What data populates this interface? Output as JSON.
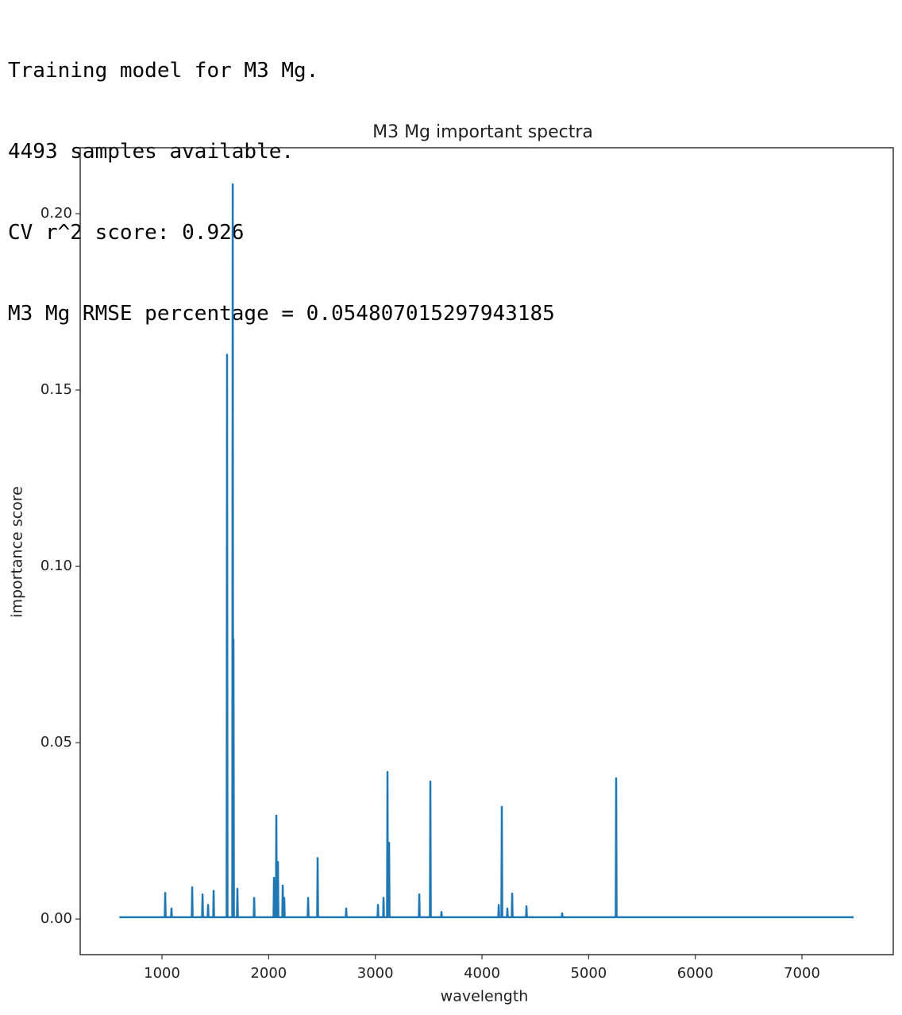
{
  "output_lines": [
    "Training model for M3 Mg.",
    "4493 samples available.",
    "CV r^2 score: 0.926",
    "M3 Mg RMSE percentage = 0.054807015297943185"
  ],
  "chart_data": {
    "type": "line",
    "title": "M3 Mg important spectra",
    "x_label": "wavelength",
    "y_label": "importance score",
    "x": [
      600,
      1026,
      1030,
      1034,
      1085,
      1089,
      1093,
      1279,
      1283,
      1287,
      1376,
      1380,
      1384,
      1428,
      1432,
      1436,
      1480,
      1484,
      1488,
      1606,
      1610,
      1614,
      1659,
      1663,
      1667,
      1670,
      1674,
      1703,
      1707,
      1711,
      1860,
      1864,
      1868,
      2046,
      2050,
      2054,
      2068,
      2072,
      2076,
      2083,
      2087,
      2091,
      2128,
      2132,
      2136,
      2142,
      2146,
      2150,
      2366,
      2370,
      2374,
      2455,
      2459,
      2463,
      2723,
      2727,
      2731,
      3021,
      3025,
      3029,
      3073,
      3077,
      3081,
      3110,
      3114,
      3118,
      3125,
      3129,
      3133,
      3408,
      3412,
      3416,
      3512,
      3516,
      3520,
      3616,
      3620,
      3624,
      4153,
      4157,
      4161,
      4182,
      4186,
      4190,
      4234,
      4238,
      4242,
      4279,
      4283,
      4287,
      4413,
      4417,
      4421,
      4748,
      4752,
      4756,
      5254,
      5258,
      5262,
      7484
    ],
    "series": [
      {
        "color": "#1f77b4",
        "values": [
          0.0005,
          0.0005,
          0.0074,
          0.0005,
          0.0005,
          0.003,
          0.0005,
          0.0005,
          0.009,
          0.0005,
          0.0005,
          0.007,
          0.0005,
          0.0005,
          0.004,
          0.0005,
          0.0005,
          0.008,
          0.0005,
          0.0005,
          0.16,
          0.0005,
          0.0005,
          0.2083,
          0.0005,
          0.0793,
          0.0005,
          0.0005,
          0.0086,
          0.0005,
          0.0005,
          0.006,
          0.0005,
          0.0005,
          0.0117,
          0.0005,
          0.0005,
          0.0293,
          0.0005,
          0.0005,
          0.0162,
          0.0005,
          0.0005,
          0.0095,
          0.0005,
          0.0005,
          0.006,
          0.0005,
          0.0005,
          0.006,
          0.0005,
          0.0005,
          0.0173,
          0.0005,
          0.0005,
          0.003,
          0.0005,
          0.0005,
          0.004,
          0.0005,
          0.0005,
          0.006,
          0.0005,
          0.0005,
          0.0417,
          0.0005,
          0.0005,
          0.0216,
          0.0005,
          0.0005,
          0.007,
          0.0005,
          0.0005,
          0.039,
          0.0005,
          0.0005,
          0.002,
          0.0005,
          0.0005,
          0.004,
          0.0005,
          0.0005,
          0.0318,
          0.0005,
          0.0005,
          0.003,
          0.0005,
          0.0005,
          0.0072,
          0.0005,
          0.0005,
          0.0036,
          0.0005,
          0.0005,
          0.0016,
          0.0005,
          0.0005,
          0.0399,
          0.0005,
          0.0005
        ]
      }
    ],
    "xlim": [
      233,
      7856
    ],
    "ylim": [
      -0.0101,
      0.2187
    ],
    "xticks": [
      1000,
      2000,
      3000,
      4000,
      5000,
      6000,
      7000
    ],
    "yticks": [
      {
        "value": 0,
        "label": "0.00"
      },
      {
        "value": 0.05,
        "label": "0.05"
      },
      {
        "value": 0.1,
        "label": "0.10"
      },
      {
        "value": 0.15,
        "label": "0.15"
      },
      {
        "value": 0.2,
        "label": "0.20"
      }
    ]
  }
}
